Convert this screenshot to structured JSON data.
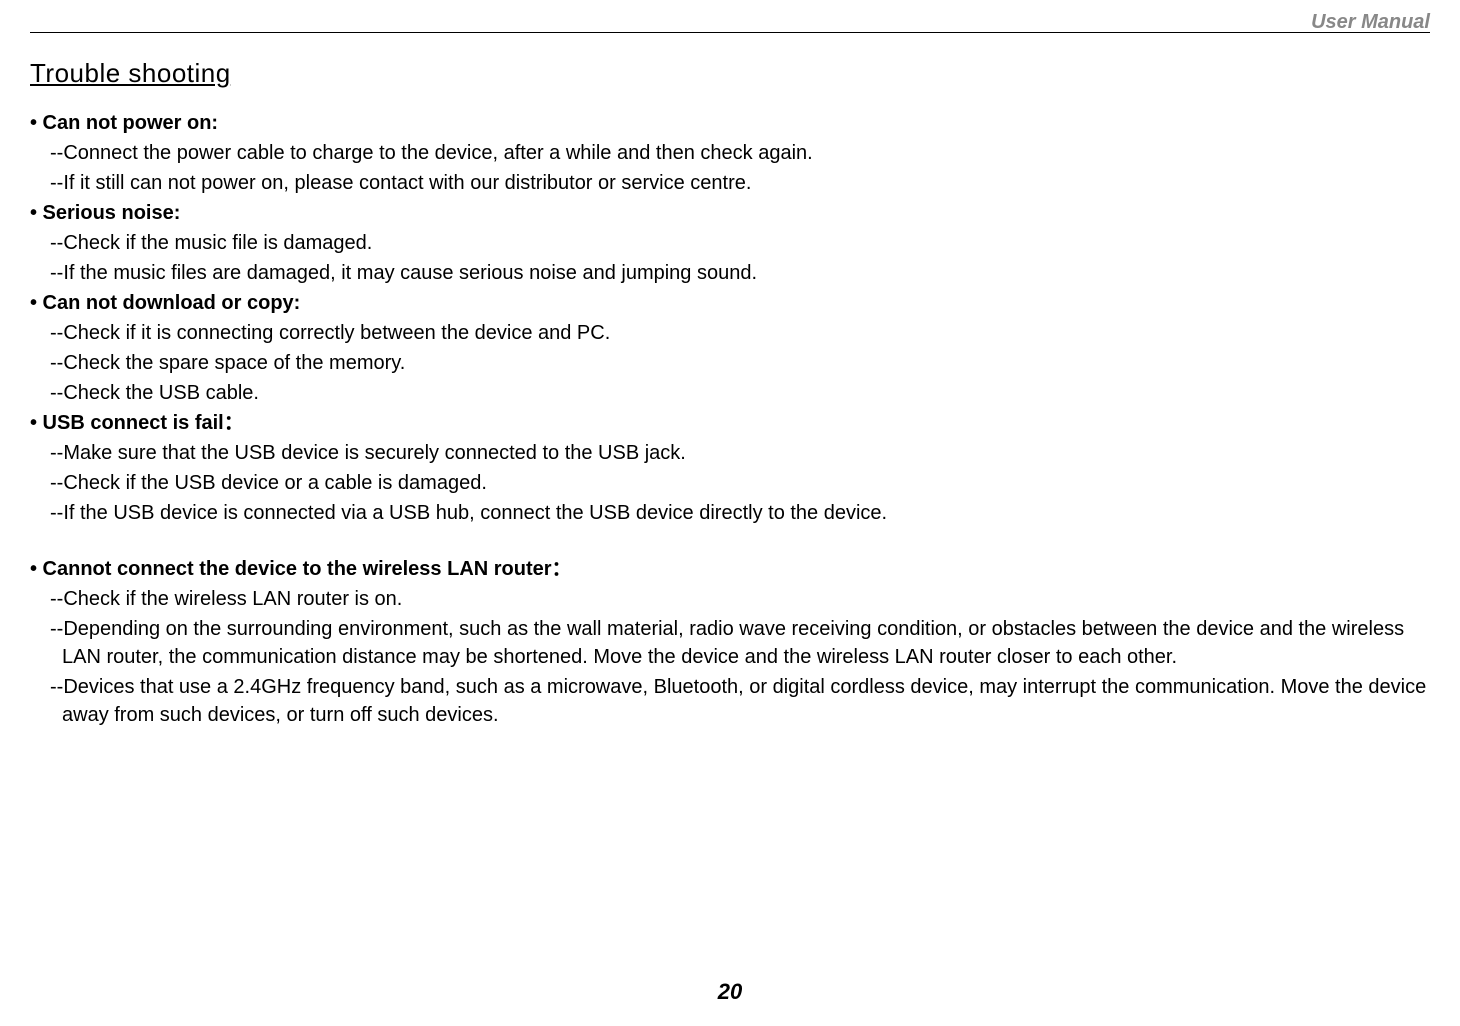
{
  "header": {
    "label": "User Manual"
  },
  "section": {
    "title": "Trouble shooting"
  },
  "items": [
    {
      "heading": "• Can not power on:",
      "subs": [
        "--Connect the power cable to charge to the device, after a while and then check again.",
        "--If it still can not power on, please contact with our distributor or service centre."
      ]
    },
    {
      "heading": "• Serious noise:",
      "subs": [
        "--Check if the music file is damaged.",
        "--If the music files are damaged, it may cause serious noise and jumping sound."
      ]
    },
    {
      "heading": "• Can not download or copy:",
      "subs": [
        "--Check if it is connecting correctly between the device and PC.",
        "--Check the spare space of the memory.",
        "--Check the USB cable."
      ]
    },
    {
      "heading": "• USB connect is fail：",
      "subs": [
        "--Make sure that the USB device is securely connected to the USB jack.",
        "--Check if the USB device or a cable is damaged.",
        "--If the USB device is connected via a USB hub, connect the USB device directly to the device."
      ]
    }
  ],
  "items2": [
    {
      "heading": "• Cannot connect the device to the wireless LAN router：",
      "subs": [
        "--Check if the wireless LAN router is on.",
        "--Depending on the surrounding environment, such as the wall material, radio wave receiving condition, or obstacles between the device and the wireless LAN router, the communication distance may be shortened. Move the device and the wireless LAN router closer to each other.",
        "--Devices that use a 2.4GHz frequency band, such as a microwave, Bluetooth, or digital cordless device, may interrupt the communication. Move the device away from such devices, or turn off such devices."
      ]
    }
  ],
  "page_number": "20",
  "colors": {
    "text": "#000000",
    "header_grey": "#888888",
    "background": "#ffffff"
  }
}
